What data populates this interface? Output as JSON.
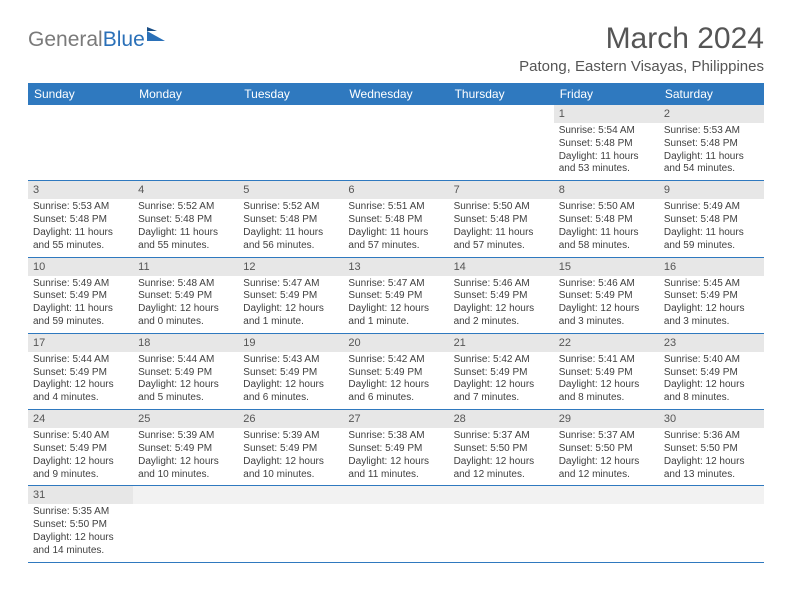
{
  "brand": {
    "text1": "General",
    "text2": "Blue"
  },
  "title": "March 2024",
  "subtitle": "Patong, Eastern Visayas, Philippines",
  "colors": {
    "header_bg": "#2f79bf",
    "header_fg": "#ffffff",
    "daynum_bg": "#e7e7e7",
    "row_border": "#2f79bf",
    "text": "#3f3f3f",
    "title_color": "#555555",
    "logo_gray": "#7a7a7a",
    "logo_blue": "#2a70b8"
  },
  "typography": {
    "title_fontsize": 30,
    "subtitle_fontsize": 15,
    "dayhead_fontsize": 12,
    "cell_fontsize": 10
  },
  "dayNames": [
    "Sunday",
    "Monday",
    "Tuesday",
    "Wednesday",
    "Thursday",
    "Friday",
    "Saturday"
  ],
  "weeks": [
    [
      null,
      null,
      null,
      null,
      null,
      {
        "n": "1",
        "sr": "5:54 AM",
        "ss": "5:48 PM",
        "dl": "11 hours and 53 minutes."
      },
      {
        "n": "2",
        "sr": "5:53 AM",
        "ss": "5:48 PM",
        "dl": "11 hours and 54 minutes."
      }
    ],
    [
      {
        "n": "3",
        "sr": "5:53 AM",
        "ss": "5:48 PM",
        "dl": "11 hours and 55 minutes."
      },
      {
        "n": "4",
        "sr": "5:52 AM",
        "ss": "5:48 PM",
        "dl": "11 hours and 55 minutes."
      },
      {
        "n": "5",
        "sr": "5:52 AM",
        "ss": "5:48 PM",
        "dl": "11 hours and 56 minutes."
      },
      {
        "n": "6",
        "sr": "5:51 AM",
        "ss": "5:48 PM",
        "dl": "11 hours and 57 minutes."
      },
      {
        "n": "7",
        "sr": "5:50 AM",
        "ss": "5:48 PM",
        "dl": "11 hours and 57 minutes."
      },
      {
        "n": "8",
        "sr": "5:50 AM",
        "ss": "5:48 PM",
        "dl": "11 hours and 58 minutes."
      },
      {
        "n": "9",
        "sr": "5:49 AM",
        "ss": "5:48 PM",
        "dl": "11 hours and 59 minutes."
      }
    ],
    [
      {
        "n": "10",
        "sr": "5:49 AM",
        "ss": "5:49 PM",
        "dl": "11 hours and 59 minutes."
      },
      {
        "n": "11",
        "sr": "5:48 AM",
        "ss": "5:49 PM",
        "dl": "12 hours and 0 minutes."
      },
      {
        "n": "12",
        "sr": "5:47 AM",
        "ss": "5:49 PM",
        "dl": "12 hours and 1 minute."
      },
      {
        "n": "13",
        "sr": "5:47 AM",
        "ss": "5:49 PM",
        "dl": "12 hours and 1 minute."
      },
      {
        "n": "14",
        "sr": "5:46 AM",
        "ss": "5:49 PM",
        "dl": "12 hours and 2 minutes."
      },
      {
        "n": "15",
        "sr": "5:46 AM",
        "ss": "5:49 PM",
        "dl": "12 hours and 3 minutes."
      },
      {
        "n": "16",
        "sr": "5:45 AM",
        "ss": "5:49 PM",
        "dl": "12 hours and 3 minutes."
      }
    ],
    [
      {
        "n": "17",
        "sr": "5:44 AM",
        "ss": "5:49 PM",
        "dl": "12 hours and 4 minutes."
      },
      {
        "n": "18",
        "sr": "5:44 AM",
        "ss": "5:49 PM",
        "dl": "12 hours and 5 minutes."
      },
      {
        "n": "19",
        "sr": "5:43 AM",
        "ss": "5:49 PM",
        "dl": "12 hours and 6 minutes."
      },
      {
        "n": "20",
        "sr": "5:42 AM",
        "ss": "5:49 PM",
        "dl": "12 hours and 6 minutes."
      },
      {
        "n": "21",
        "sr": "5:42 AM",
        "ss": "5:49 PM",
        "dl": "12 hours and 7 minutes."
      },
      {
        "n": "22",
        "sr": "5:41 AM",
        "ss": "5:49 PM",
        "dl": "12 hours and 8 minutes."
      },
      {
        "n": "23",
        "sr": "5:40 AM",
        "ss": "5:49 PM",
        "dl": "12 hours and 8 minutes."
      }
    ],
    [
      {
        "n": "24",
        "sr": "5:40 AM",
        "ss": "5:49 PM",
        "dl": "12 hours and 9 minutes."
      },
      {
        "n": "25",
        "sr": "5:39 AM",
        "ss": "5:49 PM",
        "dl": "12 hours and 10 minutes."
      },
      {
        "n": "26",
        "sr": "5:39 AM",
        "ss": "5:49 PM",
        "dl": "12 hours and 10 minutes."
      },
      {
        "n": "27",
        "sr": "5:38 AM",
        "ss": "5:49 PM",
        "dl": "12 hours and 11 minutes."
      },
      {
        "n": "28",
        "sr": "5:37 AM",
        "ss": "5:50 PM",
        "dl": "12 hours and 12 minutes."
      },
      {
        "n": "29",
        "sr": "5:37 AM",
        "ss": "5:50 PM",
        "dl": "12 hours and 12 minutes."
      },
      {
        "n": "30",
        "sr": "5:36 AM",
        "ss": "5:50 PM",
        "dl": "12 hours and 13 minutes."
      }
    ],
    [
      {
        "n": "31",
        "sr": "5:35 AM",
        "ss": "5:50 PM",
        "dl": "12 hours and 14 minutes."
      },
      null,
      null,
      null,
      null,
      null,
      null
    ]
  ],
  "labels": {
    "sunrise": "Sunrise:",
    "sunset": "Sunset:",
    "daylight": "Daylight:"
  }
}
